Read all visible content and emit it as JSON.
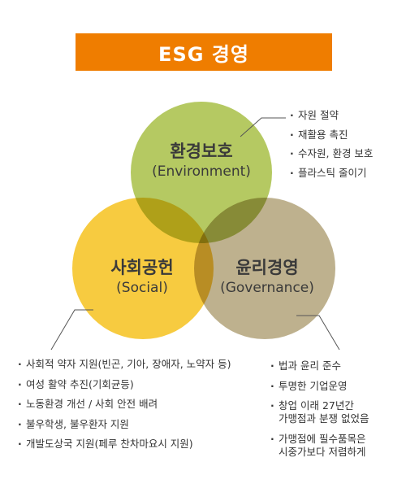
{
  "title": "ESG 경영",
  "colors": {
    "title_bg": "#ef7d00",
    "environment": "#a8c046",
    "social": "#f6c21f",
    "governance": "#b3a37a",
    "leader_line": "#555555"
  },
  "circles": {
    "environment": {
      "name": "환경보호",
      "english": "(Environment)"
    },
    "social": {
      "name": "사회공헌",
      "english": "(Social)"
    },
    "governance": {
      "name": "윤리경영",
      "english": "(Governance)"
    }
  },
  "lists": {
    "environment": [
      "자원 절약",
      "재활용 촉진",
      "수자원, 환경 보호",
      "플라스틱 줄이기"
    ],
    "social": [
      "사회적 약자 지원(빈곤, 기아, 장애자, 노약자 등)",
      "여성 활약 추진(기회균등)",
      "노동환경 개선 / 사회 안전 배려",
      "불우학생, 불우환자 지원",
      "개발도상국 지원(페루 찬차마요시 지원)"
    ],
    "governance": [
      "법과 윤리 준수",
      "투명한 기업운영",
      "창업 이래 27년간\n가맹점과 분쟁 없었음",
      "가맹점에 필수품목은\n시중가보다 저렴하게"
    ]
  }
}
